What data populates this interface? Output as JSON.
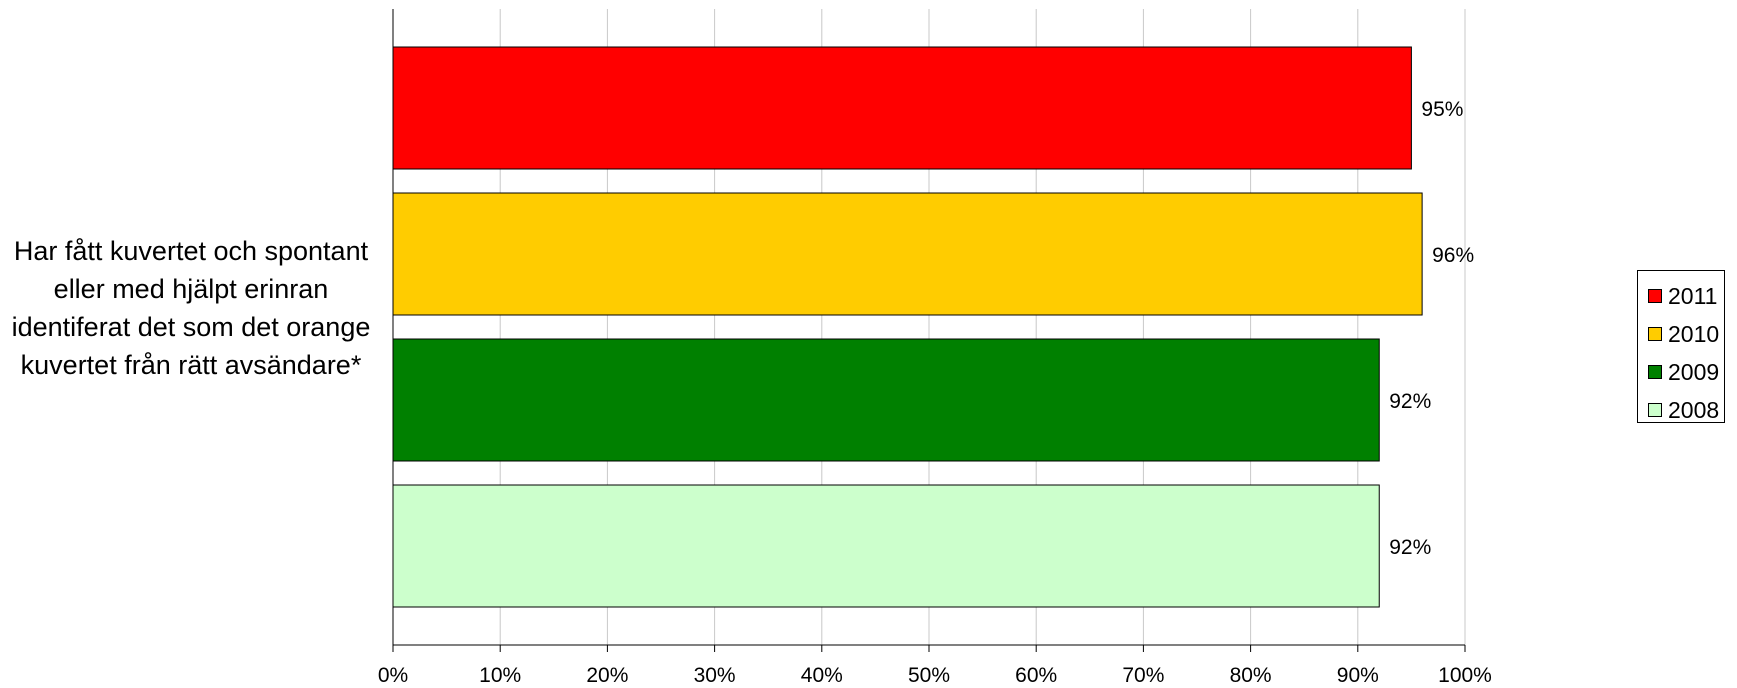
{
  "chart_data": {
    "type": "bar",
    "orientation": "horizontal",
    "categories": [
      "Har fått kuvertet och spontant eller med hjälpt erinran identiferat det som det orange kuvertet från rätt avsändare*"
    ],
    "category_label": "Har fått kuvertet och spontant eller med hjälpt erinran identiferat det som det orange kuvertet från rätt avsändare*",
    "series": [
      {
        "name": "2011",
        "values": [
          95
        ],
        "label": "95%",
        "color": "#ff0000"
      },
      {
        "name": "2010",
        "values": [
          96
        ],
        "label": "96%",
        "color": "#ffcc00"
      },
      {
        "name": "2009",
        "values": [
          92
        ],
        "label": "92%",
        "color": "#008000"
      },
      {
        "name": "2008",
        "values": [
          92
        ],
        "label": "92%",
        "color": "#ccffcc"
      }
    ],
    "xlim": [
      0,
      100
    ],
    "x_ticks": [
      "0%",
      "10%",
      "20%",
      "30%",
      "40%",
      "50%",
      "60%",
      "70%",
      "80%",
      "90%",
      "100%"
    ],
    "grid": "vertical",
    "legend_position": "right"
  }
}
